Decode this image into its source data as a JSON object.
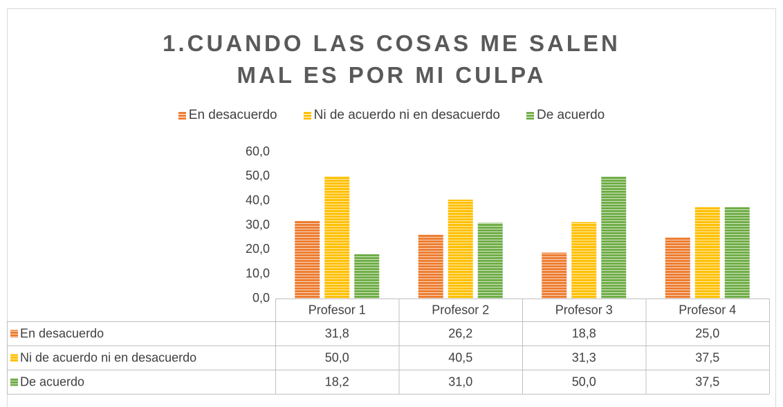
{
  "chart_data": {
    "type": "bar",
    "title": "1.CUANDO LAS COSAS ME SALEN MAL ES POR MI CULPA",
    "categories": [
      "Profesor 1",
      "Profesor 2",
      "Profesor 3",
      "Profesor 4"
    ],
    "series": [
      {
        "name": "En desacuerdo",
        "color": "#ED7D31",
        "values": [
          31.8,
          26.2,
          18.8,
          25.0
        ],
        "value_labels": [
          "31,8",
          "26,2",
          "18,8",
          "25,0"
        ]
      },
      {
        "name": "Ni de acuerdo ni en desacuerdo",
        "color": "#FFC000",
        "values": [
          50.0,
          40.5,
          31.3,
          37.5
        ],
        "value_labels": [
          "50,0",
          "40,5",
          "31,3",
          "37,5"
        ]
      },
      {
        "name": "De acuerdo",
        "color": "#70AD47",
        "values": [
          18.2,
          31.0,
          50.0,
          37.5
        ],
        "value_labels": [
          "18,2",
          "31,0",
          "50,0",
          "37,5"
        ]
      }
    ],
    "ylim": [
      0,
      60
    ],
    "yticks": [
      {
        "value": 0,
        "label": "0,0"
      },
      {
        "value": 10,
        "label": "10,0"
      },
      {
        "value": 20,
        "label": "20,0"
      },
      {
        "value": 30,
        "label": "30,0"
      },
      {
        "value": 40,
        "label": "40,0"
      },
      {
        "value": 50,
        "label": "50,0"
      },
      {
        "value": 60,
        "label": "60,0"
      }
    ],
    "legend": "top",
    "data_table": true
  }
}
